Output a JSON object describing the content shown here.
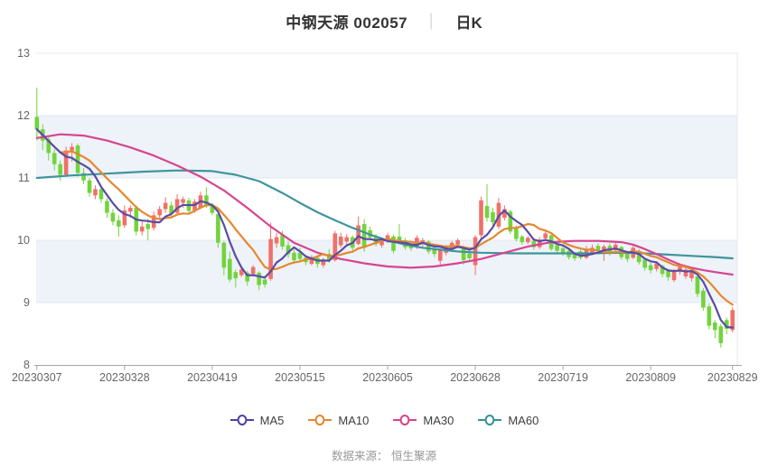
{
  "header": {
    "title": "中钢天源 002057",
    "separator": "│",
    "period_label": "日K"
  },
  "legend": [
    {
      "label": "MA5",
      "color": "#4f42a0"
    },
    {
      "label": "MA10",
      "color": "#e5872a"
    },
    {
      "label": "MA30",
      "color": "#d6448f"
    },
    {
      "label": "MA60",
      "color": "#35919a"
    }
  ],
  "footer": {
    "source_label": "数据来源： 恒生聚源"
  },
  "chart_data": {
    "type": "candlestick",
    "title": "中钢天源 002057",
    "stock_code": "002057",
    "period": "日K",
    "legend_entries": [
      "MA5",
      "MA10",
      "MA30",
      "MA60"
    ],
    "y_axis": {
      "min": 8,
      "max": 13,
      "ticks": [
        13,
        12,
        11,
        10,
        9,
        8
      ]
    },
    "x_ticks": [
      "20230307",
      "20230328",
      "20230419",
      "20230515",
      "20230605",
      "20230628",
      "20230719",
      "20230809",
      "20230829"
    ],
    "grid": "horizontal-bands",
    "legend_position": "bottom",
    "colors": {
      "up": "#f0706a",
      "down": "#72d43c",
      "ma5": "#5a4ba5",
      "ma10": "#e5882e",
      "ma30": "#d6458f",
      "ma60": "#3e959b",
      "band": "#eef2f9",
      "grid_line": "#e3e8f1",
      "axis_line": "#a3a6ad",
      "tick_label": "#666666"
    },
    "candle_fields": [
      "date",
      "open",
      "high",
      "low",
      "close"
    ],
    "candles": [
      [
        "20230307",
        11.98,
        12.45,
        11.6,
        11.78
      ],
      [
        "20230308",
        11.78,
        11.86,
        11.45,
        11.6
      ],
      [
        "20230309",
        11.62,
        11.66,
        11.28,
        11.4
      ],
      [
        "20230310",
        11.4,
        11.46,
        11.12,
        11.22
      ],
      [
        "20230313",
        11.22,
        11.28,
        10.95,
        11.05
      ],
      [
        "20230314",
        11.05,
        11.5,
        11.02,
        11.44
      ],
      [
        "20230315",
        11.44,
        11.56,
        11.26,
        11.5
      ],
      [
        "20230316",
        11.52,
        11.55,
        11.02,
        11.08
      ],
      [
        "20230317",
        11.08,
        11.16,
        10.9,
        10.96
      ],
      [
        "20230320",
        10.96,
        11.0,
        10.7,
        10.76
      ],
      [
        "20230321",
        10.72,
        10.88,
        10.66,
        10.82
      ],
      [
        "20230322",
        10.82,
        10.86,
        10.6,
        10.66
      ],
      [
        "20230323",
        10.63,
        10.68,
        10.36,
        10.44
      ],
      [
        "20230324",
        10.44,
        10.5,
        10.24,
        10.3
      ],
      [
        "20230327",
        10.32,
        10.4,
        10.06,
        10.22
      ],
      [
        "20230328",
        10.24,
        10.56,
        10.2,
        10.48
      ],
      [
        "20230329",
        10.46,
        10.56,
        10.36,
        10.52
      ],
      [
        "20230330",
        10.52,
        10.56,
        10.08,
        10.14
      ],
      [
        "20230331",
        10.14,
        10.3,
        10.08,
        10.22
      ],
      [
        "20230403",
        10.26,
        10.34,
        10.0,
        10.18
      ],
      [
        "20230404",
        10.2,
        10.46,
        10.16,
        10.4
      ],
      [
        "20230406",
        10.4,
        10.55,
        10.34,
        10.5
      ],
      [
        "20230407",
        10.5,
        10.69,
        10.44,
        10.6
      ],
      [
        "20230410",
        10.56,
        10.62,
        10.36,
        10.42
      ],
      [
        "20230411",
        10.44,
        10.74,
        10.4,
        10.66
      ],
      [
        "20230412",
        10.6,
        10.7,
        10.52,
        10.66
      ],
      [
        "20230413",
        10.64,
        10.68,
        10.42,
        10.47
      ],
      [
        "20230414",
        10.48,
        10.66,
        10.44,
        10.62
      ],
      [
        "20230417",
        10.52,
        10.78,
        10.5,
        10.72
      ],
      [
        "20230418",
        10.72,
        10.85,
        10.52,
        10.56
      ],
      [
        "20230419",
        10.56,
        10.6,
        10.4,
        10.44
      ],
      [
        "20230420",
        10.42,
        10.46,
        9.88,
        9.96
      ],
      [
        "20230421",
        9.96,
        9.99,
        9.44,
        9.56
      ],
      [
        "20230424",
        9.7,
        9.82,
        9.33,
        9.37
      ],
      [
        "20230425",
        9.49,
        9.53,
        9.24,
        9.39
      ],
      [
        "20230426",
        9.44,
        9.56,
        9.41,
        9.53
      ],
      [
        "20230427",
        9.48,
        9.51,
        9.27,
        9.34
      ],
      [
        "20230428",
        9.46,
        9.6,
        9.42,
        9.57
      ],
      [
        "20230504",
        9.48,
        9.5,
        9.2,
        9.28
      ],
      [
        "20230505",
        9.37,
        9.43,
        9.24,
        9.29
      ],
      [
        "20230508",
        9.38,
        10.28,
        9.35,
        10.02
      ],
      [
        "20230509",
        9.95,
        10.12,
        9.88,
        10.05
      ],
      [
        "20230510",
        10.08,
        10.15,
        9.85,
        9.9
      ],
      [
        "20230511",
        9.92,
        9.98,
        9.72,
        9.78
      ],
      [
        "20230512",
        9.8,
        9.85,
        9.62,
        9.68
      ],
      [
        "20230515",
        9.8,
        9.88,
        9.66,
        9.7
      ],
      [
        "20230516",
        9.72,
        9.76,
        9.6,
        9.65
      ],
      [
        "20230517",
        9.62,
        9.76,
        9.6,
        9.72
      ],
      [
        "20230518",
        9.72,
        9.75,
        9.56,
        9.62
      ],
      [
        "20230519",
        9.6,
        9.72,
        9.56,
        9.69
      ],
      [
        "20230522",
        9.78,
        9.86,
        9.64,
        9.68
      ],
      [
        "20230523",
        9.68,
        10.15,
        9.66,
        10.11
      ],
      [
        "20230524",
        9.92,
        10.12,
        9.88,
        10.06
      ],
      [
        "20230525",
        9.98,
        10.1,
        9.94,
        10.05
      ],
      [
        "20230526",
        10.05,
        10.08,
        9.84,
        9.88
      ],
      [
        "20230529",
        9.94,
        10.38,
        9.92,
        10.24
      ],
      [
        "20230530",
        10.26,
        10.34,
        9.82,
        9.88
      ],
      [
        "20230531",
        10.16,
        10.22,
        10.0,
        10.05
      ],
      [
        "20230601",
        10.05,
        10.1,
        9.9,
        9.94
      ],
      [
        "20230602",
        9.92,
        10.02,
        9.88,
        9.98
      ],
      [
        "20230605",
        9.99,
        10.12,
        9.96,
        10.08
      ],
      [
        "20230606",
        10.06,
        10.09,
        9.79,
        9.83
      ],
      [
        "20230607",
        10.06,
        10.26,
        9.96,
        10.0
      ],
      [
        "20230608",
        10.0,
        10.04,
        9.85,
        9.89
      ],
      [
        "20230609",
        9.91,
        9.97,
        9.83,
        9.87
      ],
      [
        "20230612",
        9.89,
        10.08,
        9.86,
        10.04
      ],
      [
        "20230613",
        9.95,
        10.04,
        9.9,
        10.0
      ],
      [
        "20230614",
        9.98,
        10.0,
        9.78,
        9.82
      ],
      [
        "20230615",
        9.86,
        9.9,
        9.73,
        9.78
      ],
      [
        "20230616",
        9.67,
        9.87,
        9.59,
        9.84
      ],
      [
        "20230619",
        9.8,
        9.93,
        9.76,
        9.9
      ],
      [
        "20230620",
        9.86,
        9.99,
        9.82,
        9.96
      ],
      [
        "20230621",
        9.93,
        10.03,
        9.88,
        10.0
      ],
      [
        "20230626",
        9.87,
        9.91,
        9.61,
        9.68
      ],
      [
        "20230627",
        9.79,
        9.83,
        9.65,
        9.71
      ],
      [
        "20230628",
        9.6,
        10.08,
        9.44,
        10.05
      ],
      [
        "20230629",
        10.08,
        10.7,
        10.02,
        10.64
      ],
      [
        "20230630",
        10.55,
        10.9,
        10.3,
        10.36
      ],
      [
        "20230703",
        10.45,
        10.52,
        10.24,
        10.29
      ],
      [
        "20230704",
        10.22,
        10.68,
        10.18,
        10.6
      ],
      [
        "20230705",
        10.36,
        10.56,
        10.32,
        10.5
      ],
      [
        "20230706",
        10.46,
        10.49,
        10.1,
        10.14
      ],
      [
        "20230707",
        10.21,
        10.24,
        9.98,
        10.02
      ],
      [
        "20230710",
        10.06,
        10.09,
        9.93,
        9.97
      ],
      [
        "20230711",
        9.97,
        10.07,
        9.94,
        10.04
      ],
      [
        "20230712",
        9.99,
        10.02,
        9.85,
        9.89
      ],
      [
        "20230713",
        9.89,
        10.05,
        9.86,
        10.01
      ],
      [
        "20230714",
        10.03,
        10.15,
        10.0,
        10.11
      ],
      [
        "20230717",
        10.08,
        10.11,
        9.83,
        9.86
      ],
      [
        "20230718",
        9.92,
        9.95,
        9.79,
        9.83
      ],
      [
        "20230719",
        9.87,
        9.91,
        9.75,
        9.78
      ],
      [
        "20230720",
        9.83,
        9.86,
        9.69,
        9.73
      ],
      [
        "20230721",
        9.79,
        9.81,
        9.67,
        9.71
      ],
      [
        "20230724",
        9.82,
        9.85,
        9.69,
        9.72
      ],
      [
        "20230725",
        9.72,
        9.91,
        9.7,
        9.86
      ],
      [
        "20230726",
        9.79,
        9.93,
        9.76,
        9.88
      ],
      [
        "20230727",
        9.91,
        9.95,
        9.8,
        9.84
      ],
      [
        "20230728",
        9.81,
        9.93,
        9.67,
        9.9
      ],
      [
        "20230731",
        9.91,
        9.95,
        9.75,
        9.79
      ],
      [
        "20230801",
        9.84,
        9.98,
        9.81,
        9.93
      ],
      [
        "20230802",
        9.89,
        9.91,
        9.69,
        9.73
      ],
      [
        "20230803",
        9.79,
        9.81,
        9.65,
        9.7
      ],
      [
        "20230804",
        9.72,
        9.91,
        9.7,
        9.88
      ],
      [
        "20230807",
        9.83,
        9.86,
        9.61,
        9.65
      ],
      [
        "20230808",
        9.69,
        9.71,
        9.51,
        9.56
      ],
      [
        "20230809",
        9.6,
        9.64,
        9.47,
        9.52
      ],
      [
        "20230810",
        9.54,
        9.66,
        9.5,
        9.63
      ],
      [
        "20230811",
        9.59,
        9.61,
        9.41,
        9.46
      ],
      [
        "20230814",
        9.51,
        9.53,
        9.35,
        9.41
      ],
      [
        "20230815",
        9.36,
        9.54,
        9.33,
        9.51
      ],
      [
        "20230816",
        9.49,
        9.63,
        9.45,
        9.58
      ],
      [
        "20230817",
        9.42,
        9.56,
        9.38,
        9.53
      ],
      [
        "20230818",
        9.39,
        9.55,
        9.34,
        9.5
      ],
      [
        "20230821",
        9.42,
        9.45,
        9.09,
        9.14
      ],
      [
        "20230822",
        9.19,
        9.23,
        8.87,
        8.92
      ],
      [
        "20230823",
        8.94,
        8.99,
        8.57,
        8.63
      ],
      [
        "20230824",
        8.68,
        8.72,
        8.43,
        8.56
      ],
      [
        "20230825",
        8.62,
        8.66,
        8.28,
        8.35
      ],
      [
        "20230828",
        8.72,
        8.76,
        8.49,
        8.58
      ],
      [
        "20230829",
        8.56,
        8.93,
        8.52,
        8.88
      ]
    ],
    "ma_overlays": {
      "ma5": "computed-from-closes-window-5",
      "ma10": "computed-from-closes-window-10",
      "ma30_points": [
        [
          0,
          11.64
        ],
        [
          4,
          11.7
        ],
        [
          8,
          11.68
        ],
        [
          12,
          11.6
        ],
        [
          16,
          11.49
        ],
        [
          20,
          11.36
        ],
        [
          24,
          11.2
        ],
        [
          28,
          11.02
        ],
        [
          32,
          10.8
        ],
        [
          36,
          10.52
        ],
        [
          40,
          10.22
        ],
        [
          44,
          9.96
        ],
        [
          48,
          9.8
        ],
        [
          52,
          9.7
        ],
        [
          56,
          9.63
        ],
        [
          60,
          9.58
        ],
        [
          64,
          9.56
        ],
        [
          68,
          9.58
        ],
        [
          72,
          9.63
        ],
        [
          76,
          9.7
        ],
        [
          80,
          9.8
        ],
        [
          84,
          9.9
        ],
        [
          88,
          9.97
        ],
        [
          92,
          9.99
        ],
        [
          96,
          9.99
        ],
        [
          100,
          9.97
        ],
        [
          102,
          9.93
        ],
        [
          104,
          9.86
        ],
        [
          106,
          9.78
        ],
        [
          108,
          9.69
        ],
        [
          110,
          9.61
        ],
        [
          112,
          9.56
        ],
        [
          114,
          9.52
        ],
        [
          116,
          9.49
        ],
        [
          119,
          9.45
        ]
      ],
      "ma60_points": [
        [
          0,
          11.0
        ],
        [
          6,
          11.04
        ],
        [
          12,
          11.07
        ],
        [
          18,
          11.1
        ],
        [
          24,
          11.12
        ],
        [
          30,
          11.11
        ],
        [
          34,
          11.05
        ],
        [
          38,
          10.95
        ],
        [
          42,
          10.76
        ],
        [
          45,
          10.6
        ],
        [
          48,
          10.45
        ],
        [
          51,
          10.32
        ],
        [
          54,
          10.2
        ],
        [
          57,
          10.09
        ],
        [
          60,
          10.0
        ],
        [
          63,
          9.93
        ],
        [
          66,
          9.88
        ],
        [
          69,
          9.85
        ],
        [
          72,
          9.82
        ],
        [
          76,
          9.8
        ],
        [
          82,
          9.79
        ],
        [
          88,
          9.79
        ],
        [
          94,
          9.79
        ],
        [
          100,
          9.8
        ],
        [
          104,
          9.79
        ],
        [
          108,
          9.77
        ],
        [
          112,
          9.75
        ],
        [
          116,
          9.73
        ],
        [
          119,
          9.71
        ]
      ]
    }
  }
}
